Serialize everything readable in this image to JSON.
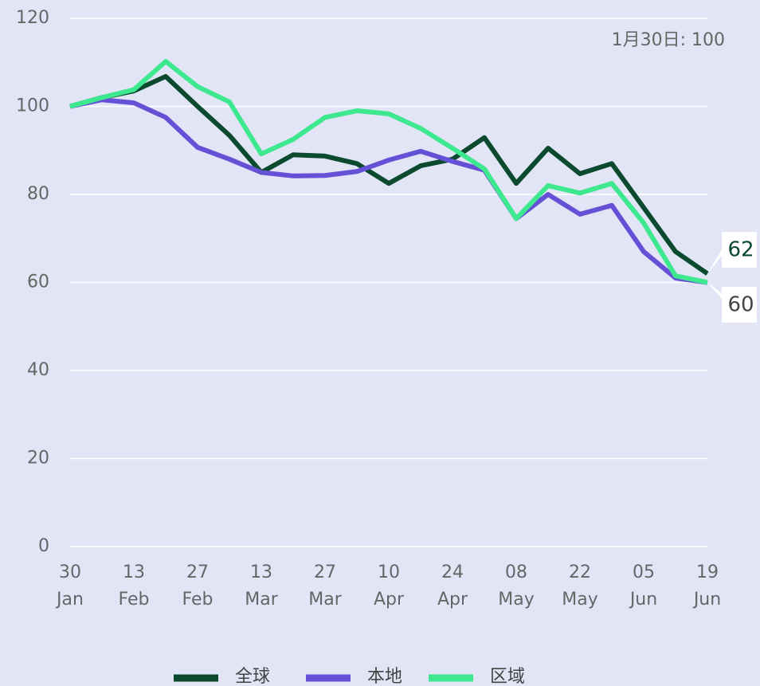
{
  "chart_data": {
    "type": "line",
    "annotation": "1月30日: 100",
    "categories": [
      "30 Jan",
      null,
      "13 Feb",
      null,
      "27 Feb",
      null,
      "13 Mar",
      null,
      "27 Mar",
      null,
      "10 Apr",
      null,
      "24 Apr",
      null,
      "08 May",
      null,
      "22 May",
      null,
      "05 Jun",
      null,
      "19 Jun"
    ],
    "series": [
      {
        "name": "全球",
        "color": "#0b4a2e",
        "values": [
          100,
          102,
          103.5,
          106.8,
          100,
          93.4,
          85,
          89,
          88.7,
          87,
          82.5,
          86.5,
          88,
          92.9,
          82.5,
          90.5,
          84.7,
          87,
          77,
          67,
          62
        ]
      },
      {
        "name": "本地",
        "color": "#6650d6",
        "values": [
          100,
          101.5,
          100.8,
          97.5,
          90.7,
          88,
          85,
          84.2,
          84.3,
          85.2,
          87.8,
          89.8,
          87.5,
          85.5,
          74.5,
          80,
          75.5,
          77.5,
          67,
          61,
          60
        ]
      },
      {
        "name": "区域",
        "color": "#3de88f",
        "values": [
          100,
          102,
          103.8,
          110.2,
          104.5,
          101,
          89.2,
          92.5,
          97.5,
          99,
          98.3,
          95,
          90.5,
          85.8,
          74.5,
          82,
          80.3,
          82.5,
          73.5,
          61.5,
          60
        ]
      }
    ],
    "ylim": [
      0,
      120
    ],
    "yticks": [
      0,
      20,
      40,
      60,
      80,
      100,
      120
    ],
    "grid": true,
    "legend": "bottom"
  }
}
